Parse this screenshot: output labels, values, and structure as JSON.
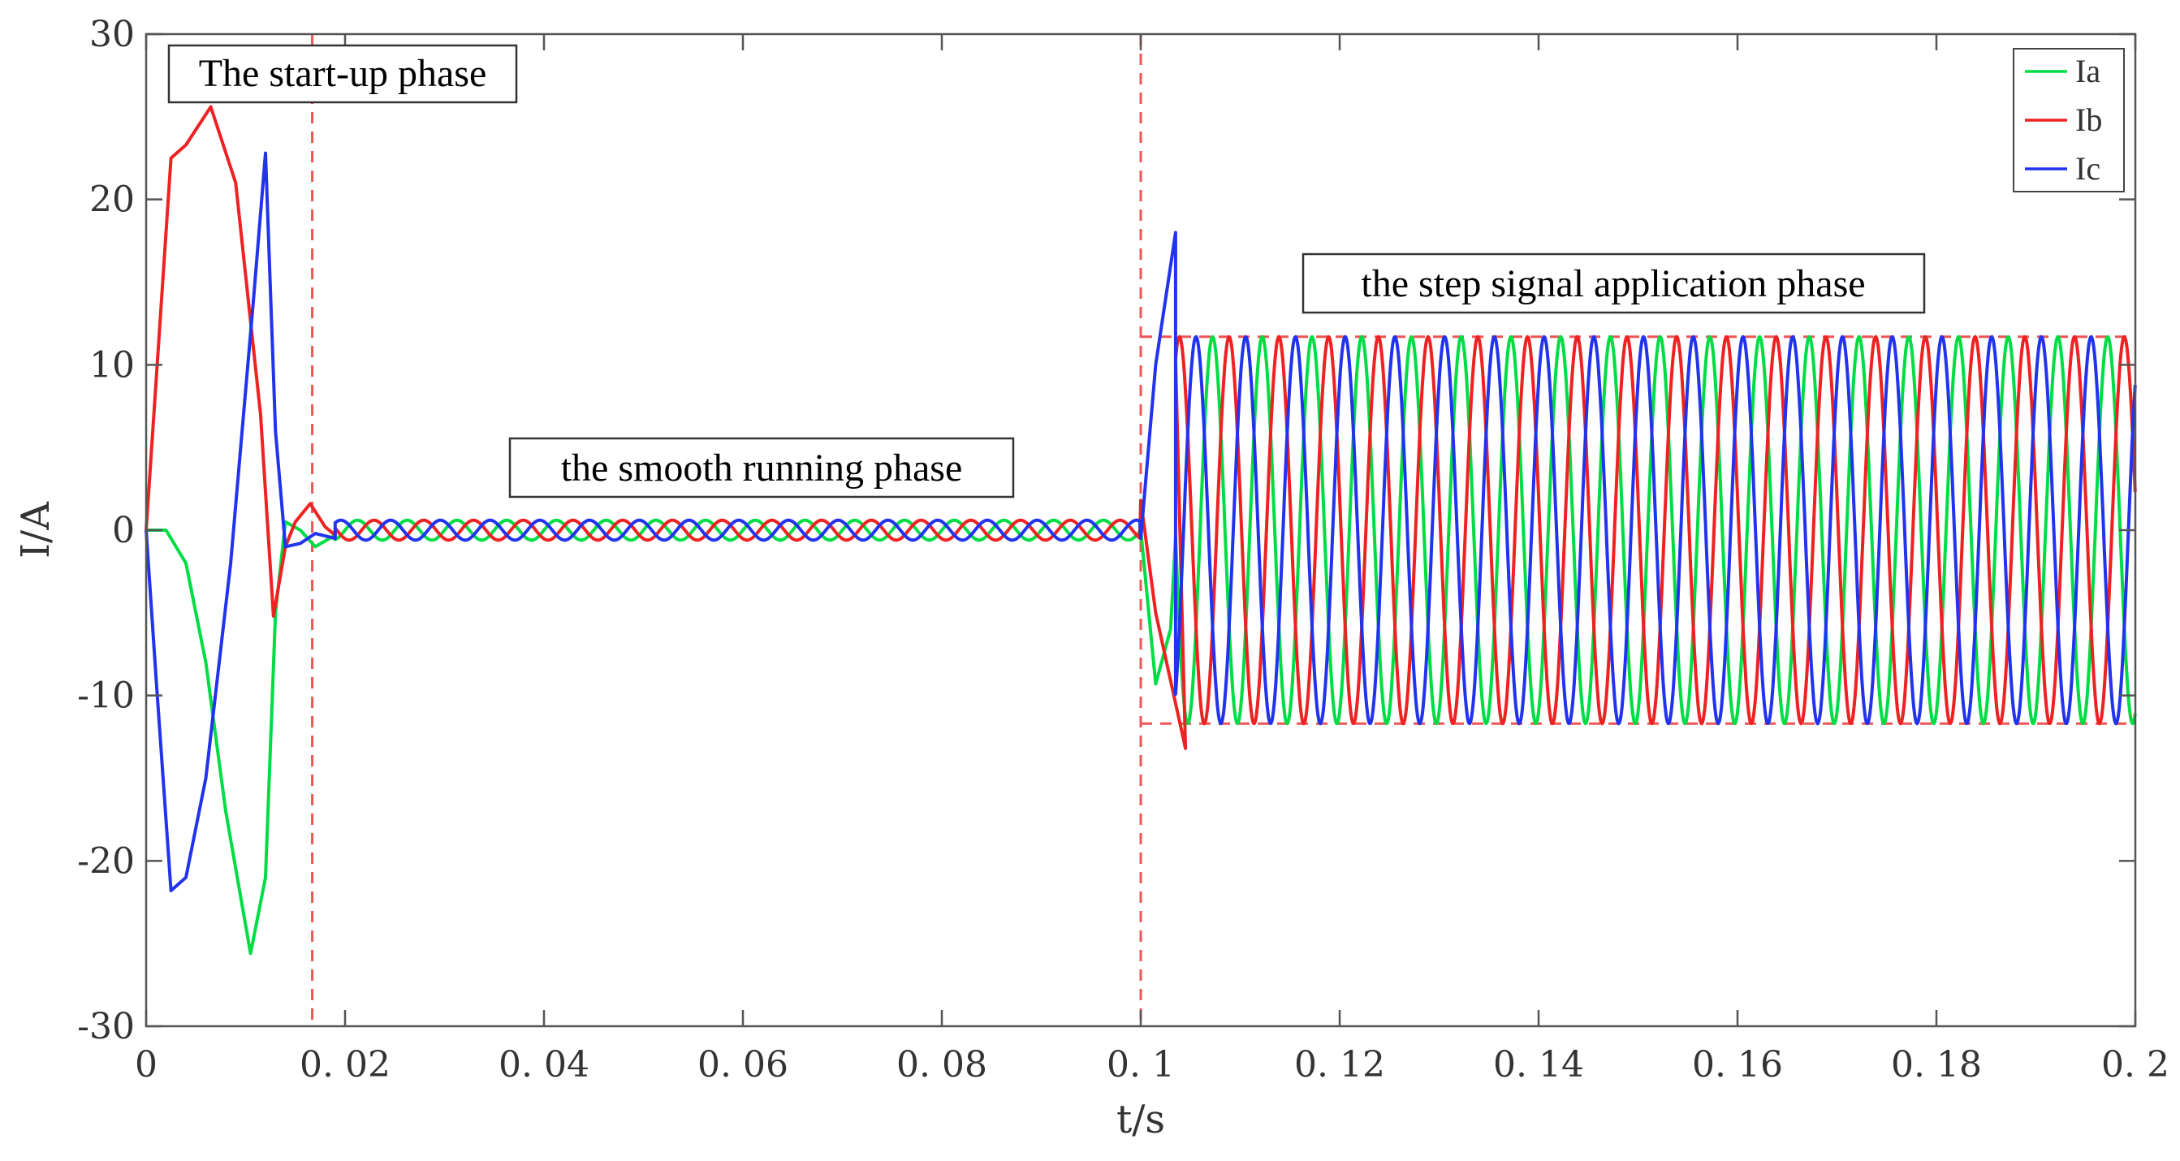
{
  "chart_data": {
    "type": "line",
    "title": "",
    "xlabel": "t/s",
    "ylabel": "I/A",
    "xlim": [
      0,
      0.2
    ],
    "ylim": [
      -30,
      30
    ],
    "x_ticks": [
      0,
      0.02,
      0.04,
      0.06,
      0.08,
      0.1,
      0.12,
      0.14,
      0.16,
      0.18,
      0.2
    ],
    "x_tick_labels": [
      "0",
      "0. 02",
      "0. 04",
      "0. 06",
      "0. 08",
      "0. 1",
      "0. 12",
      "0. 14",
      "0. 16",
      "0. 18",
      "0. 2"
    ],
    "y_ticks": [
      -30,
      -20,
      -10,
      0,
      10,
      20,
      30
    ],
    "y_tick_labels": [
      "-30",
      "-20",
      "-10",
      "0",
      "10",
      "20",
      "30"
    ],
    "grid": false,
    "legend_position": "top-right",
    "series": [
      {
        "name": "Ia",
        "color": "#00dd44",
        "phase_deg": 0,
        "points": [
          [
            0,
            0
          ],
          [
            0.002,
            0
          ],
          [
            0.004,
            -2
          ],
          [
            0.006,
            -8
          ],
          [
            0.008,
            -17
          ],
          [
            0.0105,
            -25.6
          ],
          [
            0.012,
            -21
          ],
          [
            0.013,
            -5
          ],
          [
            0.014,
            0.5
          ],
          [
            0.0155,
            0
          ],
          [
            0.017,
            -1
          ],
          [
            0.019,
            -0.3
          ]
        ]
      },
      {
        "name": "Ib",
        "color": "#ee2222",
        "phase_deg": -120,
        "points": [
          [
            0,
            0
          ],
          [
            0.0025,
            22.5
          ],
          [
            0.004,
            23.3
          ],
          [
            0.0065,
            25.6
          ],
          [
            0.009,
            21
          ],
          [
            0.0115,
            7
          ],
          [
            0.0128,
            -5.2
          ],
          [
            0.014,
            -1
          ],
          [
            0.015,
            0.5
          ],
          [
            0.0165,
            1.6
          ],
          [
            0.018,
            0.2
          ],
          [
            0.019,
            -0.3
          ]
        ]
      },
      {
        "name": "Ic",
        "color": "#2233ee",
        "phase_deg": 120,
        "points": [
          [
            0,
            0
          ],
          [
            0.001,
            -9
          ],
          [
            0.0025,
            -21.8
          ],
          [
            0.004,
            -21
          ],
          [
            0.006,
            -15
          ],
          [
            0.0085,
            -2
          ],
          [
            0.0108,
            14
          ],
          [
            0.012,
            22.8
          ],
          [
            0.013,
            6
          ],
          [
            0.014,
            -1
          ],
          [
            0.0155,
            -0.8
          ],
          [
            0.017,
            -0.2
          ],
          [
            0.019,
            -0.5
          ]
        ]
      }
    ],
    "steady_state": {
      "frequency_hz": 200,
      "low_amplitude": 0.6,
      "low_interval": [
        0.019,
        0.1
      ],
      "step_time": 0.1,
      "step_transient": {
        "Ia": [
          [
            0.1,
            0
          ],
          [
            0.1015,
            -9.3
          ],
          [
            0.103,
            -6
          ]
        ],
        "Ib": [
          [
            0.1,
            1.8
          ],
          [
            0.1015,
            -5
          ],
          [
            0.1045,
            -13.2
          ]
        ],
        "Ic": [
          [
            0.1,
            -0.5
          ],
          [
            0.1015,
            10
          ],
          [
            0.1035,
            18
          ]
        ]
      },
      "high_amplitude": 11.7,
      "high_interval": [
        0.1035,
        0.2
      ]
    },
    "reference_lines": {
      "vertical_x": [
        0.0167,
        0.1
      ],
      "horizontal_y": [
        11.7,
        -11.7
      ],
      "horizontal_x_start": 0.1,
      "color": "#ee5555"
    },
    "annotations": [
      {
        "id": "startup",
        "text": "The start-up phase"
      },
      {
        "id": "smooth",
        "text": "the smooth running phase"
      },
      {
        "id": "step",
        "text": "the step signal application phase"
      }
    ]
  }
}
